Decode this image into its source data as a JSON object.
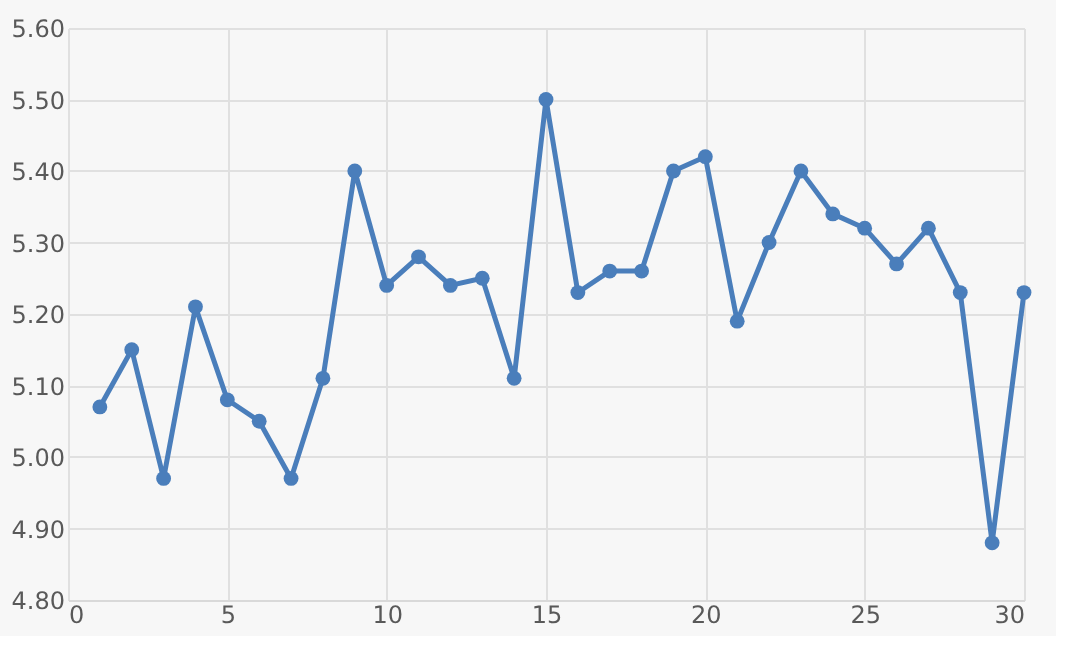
{
  "chart_data": {
    "type": "line",
    "x": [
      1,
      2,
      3,
      4,
      5,
      6,
      7,
      8,
      9,
      10,
      11,
      12,
      13,
      14,
      15,
      16,
      17,
      18,
      19,
      20,
      21,
      22,
      23,
      24,
      25,
      26,
      27,
      28,
      29,
      30
    ],
    "series": [
      {
        "color": "#4a7ebb",
        "values": [
          5.07,
          5.15,
          4.97,
          5.21,
          5.08,
          5.05,
          4.97,
          5.11,
          5.4,
          5.24,
          5.28,
          5.24,
          5.25,
          5.11,
          5.5,
          5.23,
          5.26,
          5.26,
          5.4,
          5.42,
          5.19,
          5.3,
          5.4,
          5.34,
          5.32,
          5.27,
          5.32,
          5.23,
          4.88,
          5.23
        ]
      }
    ],
    "xlim": [
      0,
      30
    ],
    "xticks": [
      0,
      5,
      10,
      15,
      20,
      25,
      30
    ],
    "ylim": [
      4.8,
      5.6
    ],
    "yticks": [
      {
        "value": 4.8,
        "label": "4.80"
      },
      {
        "value": 4.9,
        "label": "4.90"
      },
      {
        "value": 5.0,
        "label": "5.00"
      },
      {
        "value": 5.1,
        "label": "5.10"
      },
      {
        "value": 5.2,
        "label": "5.20"
      },
      {
        "value": 5.3,
        "label": "5.30"
      },
      {
        "value": 5.4,
        "label": "5.40"
      },
      {
        "value": 5.5,
        "label": "5.50"
      },
      {
        "value": 5.6,
        "label": "5.60"
      }
    ],
    "grid": true,
    "marker": "circle",
    "line_style": "solid",
    "legend": false
  }
}
